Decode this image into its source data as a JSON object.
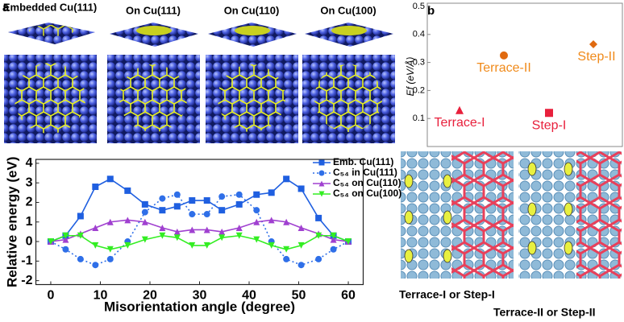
{
  "panel_a": {
    "label": "a",
    "views": [
      "Embedded Cu(111)",
      "On Cu(111)",
      "On Cu(110)",
      "On Cu(100)"
    ]
  },
  "panel_b": {
    "label": "b",
    "images": [
      "Terrace-I or Step-I",
      "Terrace-II or Step-II"
    ]
  },
  "chart_data": [
    {
      "type": "line",
      "xlabel": "Misorientation angle (degree)",
      "ylabel": "Relative energy (eV)",
      "x": [
        0,
        3,
        6,
        9,
        12,
        15.5,
        19,
        22.5,
        25.5,
        28.5,
        31.5,
        34.5,
        38,
        41.5,
        44.5,
        47.5,
        50.5,
        54,
        57,
        60
      ],
      "xlim": [
        -3,
        63
      ],
      "xticks": [
        0,
        10,
        20,
        30,
        40,
        50,
        60
      ],
      "ylim": [
        -2.2,
        4.2
      ],
      "yticks": [
        -2,
        -1,
        0,
        1,
        2,
        3,
        4
      ],
      "series": [
        {
          "name": "Emb. Cu(111)",
          "color": "#1f5fe0",
          "marker": "square",
          "dashed": false,
          "values": [
            0,
            0.3,
            1.3,
            2.8,
            3.2,
            2.6,
            1.9,
            1.6,
            1.8,
            2.1,
            2.1,
            1.6,
            1.9,
            2.4,
            2.5,
            3.2,
            2.7,
            1.2,
            0.3,
            0
          ]
        },
        {
          "name": "C₅₄ in Cu(111)",
          "color": "#2f6fe8",
          "marker": "circle",
          "dashed": true,
          "values": [
            0,
            -0.4,
            -0.9,
            -1.2,
            -0.9,
            0,
            1.5,
            2.2,
            2.4,
            1.4,
            1.4,
            2.3,
            2.4,
            1.6,
            0,
            -0.9,
            -1.2,
            -0.9,
            -0.4,
            0
          ]
        },
        {
          "name": "C₅₄ on Cu(110)",
          "color": "#a040d0",
          "marker": "triangle",
          "dashed": false,
          "values": [
            0,
            0.1,
            0.4,
            0.7,
            1.0,
            1.1,
            1.0,
            0.7,
            0.5,
            0.6,
            0.6,
            0.5,
            0.7,
            1.0,
            1.1,
            1.0,
            0.7,
            0.4,
            0.1,
            0
          ]
        },
        {
          "name": "C₅₄ on Cu(100)",
          "color": "#33ee22",
          "marker": "triangle-down",
          "dashed": false,
          "values": [
            0,
            0.3,
            0.3,
            -0.2,
            -0.4,
            -0.2,
            0.1,
            0.3,
            0.2,
            -0.2,
            -0.2,
            0.2,
            0.3,
            0.1,
            -0.2,
            -0.4,
            -0.2,
            0.3,
            0.3,
            0
          ]
        }
      ]
    },
    {
      "type": "scatter",
      "ylabel": "Ef (eV/Å)",
      "categories": [
        "Terrace-I",
        "Terrace-II",
        "Step-I",
        "Step-II"
      ],
      "values": [
        0.13,
        0.325,
        0.12,
        0.365
      ],
      "colors": [
        "#e8203c",
        "#e06a10",
        "#e8203c",
        "#e06a10"
      ],
      "label_colors": [
        "#e8203c",
        "#f08a1a",
        "#e8203c",
        "#f08a1a"
      ],
      "markers": [
        "triangle",
        "circle",
        "square",
        "diamond"
      ],
      "ylim": [
        0,
        0.5
      ],
      "yticks": [
        0.1,
        0.2,
        0.3,
        0.4,
        0.5
      ]
    }
  ]
}
